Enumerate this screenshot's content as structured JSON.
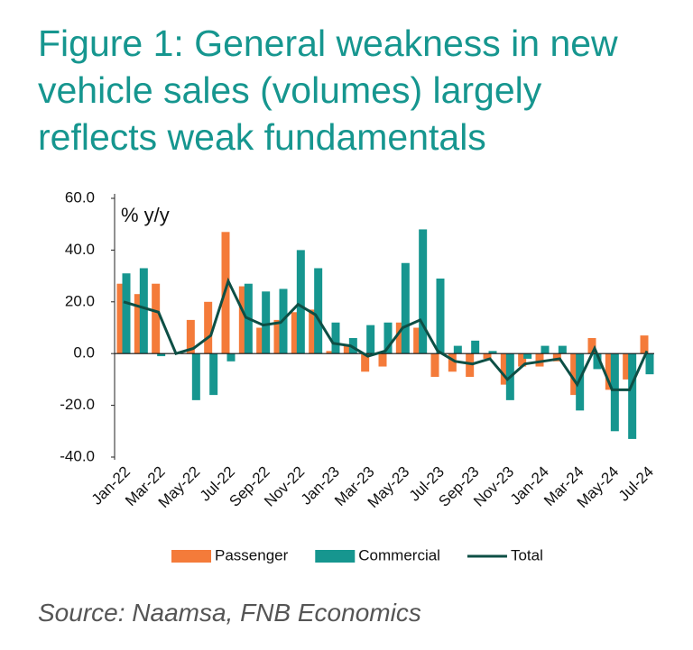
{
  "chart_data": {
    "type": "bar",
    "title": "Figure 1: General weakness in new vehicle sales (volumes) largely reflects weak fundamentals",
    "y_label": "% y/y",
    "source": "Source: Naamsa, FNB Economics",
    "categories": [
      "Jan-22",
      null,
      "Mar-22",
      null,
      "May-22",
      null,
      "Jul-22",
      null,
      "Sep-22",
      null,
      "Nov-22",
      null,
      "Jan-23",
      null,
      "Mar-23",
      null,
      "May-23",
      null,
      "Jul-23",
      null,
      "Sep-23",
      null,
      "Nov-23",
      null,
      "Jan-24",
      null,
      "Mar-24",
      null,
      "May-24",
      null,
      "Jul-24"
    ],
    "series": [
      {
        "name": "Passenger",
        "color": "#f47b3a",
        "type": "bar",
        "values": [
          27,
          23,
          27,
          0,
          13,
          20,
          47,
          26,
          10,
          13,
          16,
          17,
          1,
          3,
          -7,
          -5,
          12,
          10,
          -9,
          -7,
          -9,
          -2,
          -12,
          -5,
          -5,
          -3,
          -16,
          6,
          -14,
          -10,
          7
        ]
      },
      {
        "name": "Commercial",
        "color": "#16968f",
        "type": "bar",
        "values": [
          31,
          33,
          -1,
          0,
          -18,
          -16,
          -3,
          27,
          24,
          25,
          40,
          33,
          12,
          6,
          11,
          12,
          35,
          48,
          29,
          3,
          5,
          1,
          -18,
          -2,
          3,
          3,
          -22,
          -6,
          -30,
          -33,
          -8
        ]
      },
      {
        "name": "Total",
        "color": "#0d4f45",
        "type": "line",
        "values": [
          20,
          18,
          16,
          0,
          2,
          7,
          28,
          14,
          11,
          12,
          19,
          15,
          4,
          3,
          -1,
          1,
          10,
          13,
          1,
          -3,
          -4,
          -2,
          -10,
          -4,
          -3,
          -2,
          -12,
          2,
          -14,
          -14,
          1
        ]
      }
    ],
    "ylim": [
      -40,
      60
    ],
    "yticks": [
      {
        "value": -40,
        "label": "-40.0"
      },
      {
        "value": -20,
        "label": "-20.0"
      },
      {
        "value": 0,
        "label": "0.0"
      },
      {
        "value": 20,
        "label": "20.0"
      },
      {
        "value": 40,
        "label": "40.0"
      },
      {
        "value": 60,
        "label": "60.0"
      }
    ],
    "grid": false
  }
}
